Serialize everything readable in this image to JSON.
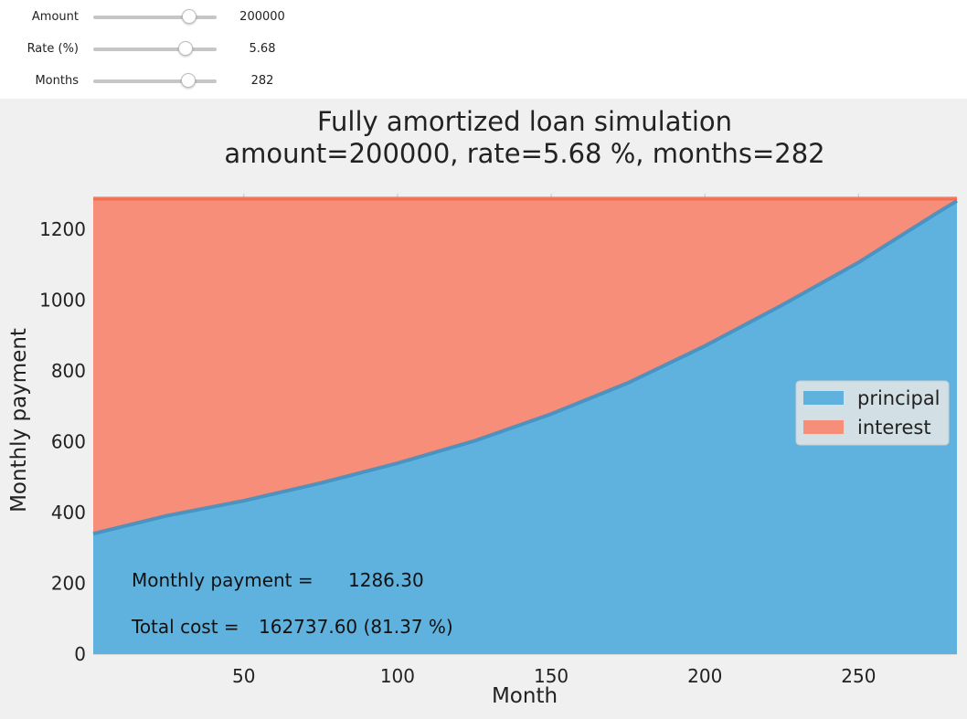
{
  "controls": [
    {
      "label": "Amount",
      "value": "200000",
      "fraction": 0.78
    },
    {
      "label": "Rate (%)",
      "value": "5.68",
      "fraction": 0.75
    },
    {
      "label": "Months",
      "value": "282",
      "fraction": 0.77
    }
  ],
  "chart_data": {
    "type": "area",
    "stacked": true,
    "title": "Fully amortized loan simulation",
    "subtitle": "amount=200000, rate=5.68 %, months=282",
    "xlabel": "Month",
    "ylabel": "Monthly payment",
    "xlim": [
      1,
      282
    ],
    "ylim": [
      0,
      1300
    ],
    "xticks": [
      50,
      100,
      150,
      200,
      250
    ],
    "yticks": [
      0,
      200,
      400,
      600,
      800,
      1000,
      1200
    ],
    "grid": true,
    "legend_position": "center-right",
    "series": [
      {
        "name": "principal",
        "color": "#5fb2dd",
        "edge_color": "#3d8fc2",
        "x": [
          1,
          25,
          50,
          75,
          100,
          125,
          150,
          175,
          200,
          225,
          250,
          275,
          282
        ],
        "values": [
          340,
          391,
          433,
          483,
          539,
          602,
          678,
          766,
          870,
          985,
          1106,
          1243,
          1280
        ]
      },
      {
        "name": "interest",
        "color": "#f68e7a",
        "edge_color": "#f26649",
        "x": [
          1,
          25,
          50,
          75,
          100,
          125,
          150,
          175,
          200,
          225,
          250,
          275,
          282
        ],
        "values": [
          946,
          895,
          853,
          803,
          747,
          684,
          608,
          520,
          416,
          301,
          180,
          43,
          6
        ]
      }
    ],
    "annotations": [
      {
        "label": "Monthly payment =",
        "value": "1286.30"
      },
      {
        "label": "Total cost =",
        "value": "162737.60 (81.37 %)"
      }
    ]
  }
}
